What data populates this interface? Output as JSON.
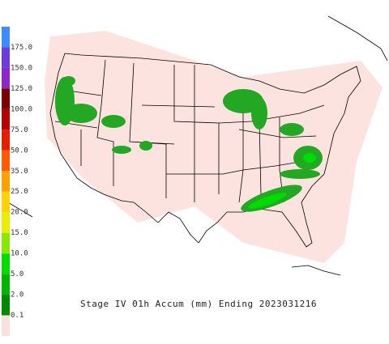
{
  "title": "Stage IV 01h Accum (mm) Ending 2023031216",
  "legend": {
    "items": [
      {
        "label": "0.1",
        "color": "#fbe0dc"
      },
      {
        "label": "2.0",
        "color": "#008a00"
      },
      {
        "label": "5.0",
        "color": "#00b400"
      },
      {
        "label": "10.0",
        "color": "#00dc00"
      },
      {
        "label": "15.0",
        "color": "#8ce600"
      },
      {
        "label": "20.0",
        "color": "#e6f000"
      },
      {
        "label": "25.0",
        "color": "#ffd200"
      },
      {
        "label": "35.0",
        "color": "#ffa000"
      },
      {
        "label": "50.0",
        "color": "#ff5a00"
      },
      {
        "label": "75.0",
        "color": "#e61e00"
      },
      {
        "label": "100.0",
        "color": "#b40000"
      },
      {
        "label": "125.0",
        "color": "#780000"
      },
      {
        "label": "150.0",
        "color": "#8c28c8"
      },
      {
        "label": "175.0",
        "color": "#6e3cdc"
      }
    ],
    "top_color": "#3c8cff"
  }
}
